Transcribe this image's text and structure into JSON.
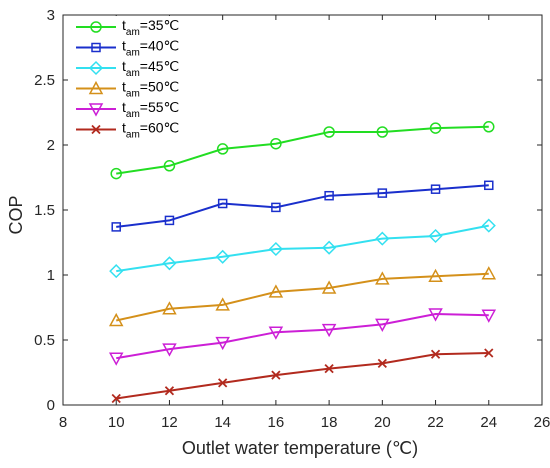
{
  "chart_data": {
    "type": "line",
    "title": "",
    "xlabel": "Outlet water temperature (℃)",
    "ylabel": "COP",
    "xlim": [
      8,
      26
    ],
    "ylim": [
      0,
      3
    ],
    "x_ticks": [
      8,
      10,
      12,
      14,
      16,
      18,
      20,
      22,
      24,
      26
    ],
    "y_ticks": [
      0,
      0.5,
      1,
      1.5,
      2,
      2.5,
      3
    ],
    "x_tick_labels": [
      "8",
      "10",
      "12",
      "14",
      "16",
      "18",
      "20",
      "22",
      "24",
      "26"
    ],
    "y_tick_labels": [
      "0",
      "0.5",
      "1",
      "1.5",
      "2",
      "2.5",
      "3"
    ],
    "grid": false,
    "legend_position": "top-left",
    "x": [
      10,
      12,
      14,
      16,
      18,
      20,
      22,
      24
    ],
    "series": [
      {
        "name": "t_am=35℃",
        "legend_main": "t",
        "legend_sub": "am",
        "legend_rest": "=35℃",
        "color": "#22dd22",
        "marker": "circle",
        "values": [
          1.78,
          1.84,
          1.97,
          2.01,
          2.1,
          2.1,
          2.13,
          2.14
        ]
      },
      {
        "name": "t_am=40℃",
        "legend_main": "t",
        "legend_sub": "am",
        "legend_rest": "=40℃",
        "color": "#1a2fcc",
        "marker": "square",
        "values": [
          1.37,
          1.42,
          1.55,
          1.52,
          1.61,
          1.63,
          1.66,
          1.69
        ]
      },
      {
        "name": "t_am=45℃",
        "legend_main": "t",
        "legend_sub": "am",
        "legend_rest": "=45℃",
        "color": "#33e0f0",
        "marker": "diamond",
        "values": [
          1.03,
          1.09,
          1.14,
          1.2,
          1.21,
          1.28,
          1.3,
          1.38
        ]
      },
      {
        "name": "t_am=50℃",
        "legend_main": "t",
        "legend_sub": "am",
        "legend_rest": "=50℃",
        "color": "#d4901a",
        "marker": "triangle-up",
        "values": [
          0.65,
          0.74,
          0.77,
          0.87,
          0.9,
          0.97,
          0.99,
          1.01
        ]
      },
      {
        "name": "t_am=55℃",
        "legend_main": "t",
        "legend_sub": "am",
        "legend_rest": "=55℃",
        "color": "#cc1fd6",
        "marker": "triangle-down",
        "values": [
          0.36,
          0.43,
          0.48,
          0.56,
          0.58,
          0.62,
          0.7,
          0.69
        ]
      },
      {
        "name": "t_am=60℃",
        "legend_main": "t",
        "legend_sub": "am",
        "legend_rest": "=60℃",
        "color": "#b22a1e",
        "marker": "x",
        "values": [
          0.05,
          0.11,
          0.17,
          0.23,
          0.28,
          0.32,
          0.39,
          0.4
        ]
      }
    ]
  }
}
